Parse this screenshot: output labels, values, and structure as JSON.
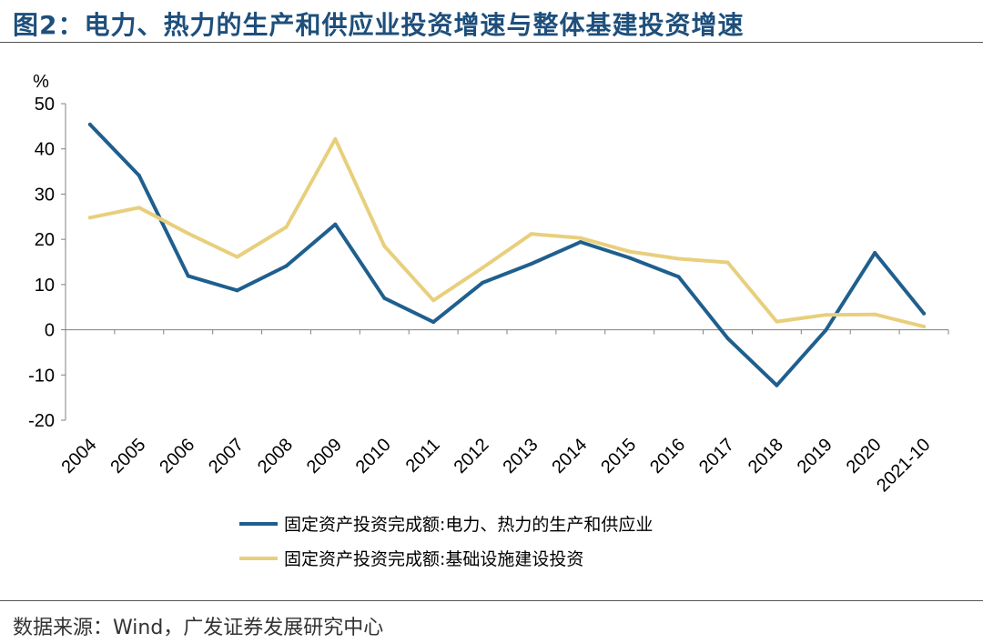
{
  "header": {
    "title": "图2：电力、热力的生产和供应业投资增速与整体基建投资增速"
  },
  "footer": {
    "source": "数据来源：Wind，广发证券发展研究中心"
  },
  "colors": {
    "series_power": "#1f5f8e",
    "series_infra": "#e8cf7c",
    "title": "#1e4f7c"
  },
  "chart_data": {
    "type": "line",
    "ylabel": "%",
    "xlabel": "",
    "ylim": [
      -20,
      50
    ],
    "yticks": [
      -20,
      -10,
      0,
      10,
      20,
      30,
      40,
      50
    ],
    "grid": false,
    "legend_position": "bottom",
    "categories": [
      "2004",
      "2005",
      "2006",
      "2007",
      "2008",
      "2009",
      "2010",
      "2011",
      "2012",
      "2013",
      "2014",
      "2015",
      "2016",
      "2017",
      "2018",
      "2019",
      "2020",
      "2021-10"
    ],
    "series": [
      {
        "name": "固定资产投资完成额:电力、热力的生产和供应业",
        "color": "#1f5f8e",
        "values": [
          45.4,
          34.1,
          11.9,
          8.7,
          14.1,
          23.3,
          7.0,
          1.7,
          10.4,
          14.6,
          19.4,
          15.9,
          11.7,
          -1.9,
          -12.3,
          -0.1,
          17.0,
          3.6
        ]
      },
      {
        "name": "固定资产投资完成额:基础设施建设投资",
        "color": "#e8cf7c",
        "values": [
          24.8,
          27.0,
          21.3,
          16.1,
          22.7,
          42.2,
          18.5,
          6.5,
          13.7,
          21.2,
          20.3,
          17.3,
          15.7,
          14.9,
          1.8,
          3.3,
          3.4,
          0.7
        ]
      }
    ]
  }
}
